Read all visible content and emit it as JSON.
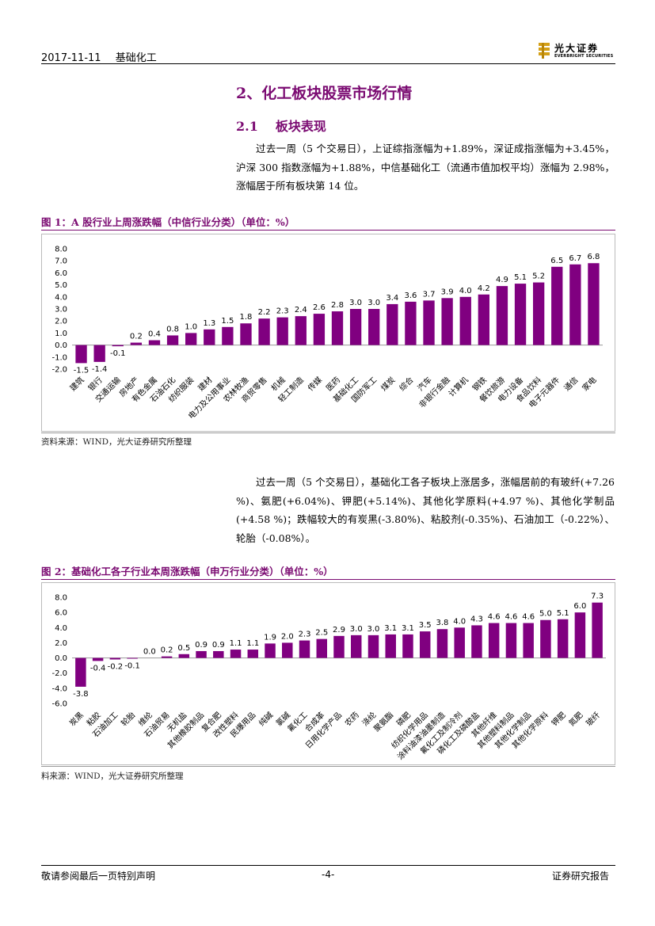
{
  "header": {
    "date": "2017-11-11",
    "topic": "基础化工",
    "brand_cn": "光大证券",
    "brand_en": "EVERBRIGHT SECURITIES"
  },
  "section": {
    "h2": "2、化工板块股票市场行情",
    "h3_num": "2.1",
    "h3_title": "板块表现"
  },
  "para1": "过去一周（5 个交易日），上证综指涨幅为+1.89%，深证成指涨幅为+3.45%，沪深 300 指数涨幅为+1.88%，中信基础化工（流通市值加权平均）涨幅为 2.98%，涨幅居于所有板块第 14 位。",
  "para2": "过去一周（5 个交易日），基础化工各子板块上涨居多，涨幅居前的有玻纤(+7.26 %)、氨肥(+6.04%)、钾肥(+5.14%)、其他化学原料(+4.97 %)、其他化学制品(+4.58 %)；跌幅较大的有炭黑(-3.80%)、粘胶剂(-0.35%)、石油加工（-0.22%）、轮胎（-0.08%）。",
  "fig1": {
    "title": "图 1：A 股行业上周涨跌幅（中信行业分类）（单位：%）",
    "source": "资料来源：WIND，光大证券研究所整理"
  },
  "fig2": {
    "title": "图 2：基础化工各子行业本周涨跌幅（申万行业分类）（单位：%）",
    "source": "料来源：WIND，光大证券研究所整理"
  },
  "footer": {
    "left": "敬请参阅最后一页特别声明",
    "center": "-4-",
    "right": "证券研究报告"
  },
  "colors": {
    "accent": "#7b0b72",
    "bar": "#800080"
  },
  "chart_data": [
    {
      "type": "bar",
      "title": "A 股行业上周涨跌幅（中信行业分类）（单位：%）",
      "categories": [
        "建筑",
        "银行",
        "交通运输",
        "房地产",
        "有色金属",
        "石油石化",
        "纺织服装",
        "建材",
        "电力及公用事业",
        "农林牧渔",
        "商贸零售",
        "机械",
        "轻工制造",
        "传媒",
        "医药",
        "基础化工",
        "国防军工",
        "煤炭",
        "综合",
        "汽车",
        "非银行金融",
        "计算机",
        "钢铁",
        "餐饮旅游",
        "电力设备",
        "食品饮料",
        "电子元器件",
        "通信",
        "家电"
      ],
      "values": [
        -1.5,
        -1.4,
        -0.1,
        0.2,
        0.4,
        0.8,
        1.0,
        1.3,
        1.5,
        1.8,
        2.2,
        2.3,
        2.4,
        2.6,
        2.8,
        3.0,
        3.0,
        3.4,
        3.6,
        3.7,
        3.9,
        4.0,
        4.2,
        4.9,
        5.1,
        5.2,
        6.5,
        6.7,
        6.8
      ],
      "labels": [
        "-1.5",
        "-1.4",
        "-0.1",
        "0.2",
        "0.4",
        "0.8",
        "1.0",
        "1.3",
        "1.5",
        "1.8",
        "2.2",
        "2.3",
        "2.4",
        "2.6",
        "2.8",
        "3.0",
        "3.0",
        "3.4",
        "3.6",
        "3.7",
        "3.9",
        "4.0",
        "4.2",
        "4.9",
        "5.1",
        "5.2",
        "6.5",
        "6.7",
        "6.8"
      ],
      "ylim": [
        -2,
        8
      ],
      "yticks": [
        -2,
        -1,
        0,
        1,
        2,
        3,
        4,
        5,
        6,
        7,
        8
      ],
      "ytick_labels": [
        "-2.0",
        "-1.0",
        "0.0",
        "1.0",
        "2.0",
        "3.0",
        "4.0",
        "5.0",
        "6.0",
        "7.0",
        "8.0"
      ],
      "xlabel": "",
      "ylabel": ""
    },
    {
      "type": "bar",
      "title": "基础化工各子行业本周涨跌幅（申万行业分类）（单位：%）",
      "categories": [
        "炭黑",
        "粘胶",
        "石油加工",
        "轮胎",
        "维纶",
        "石油贸易",
        "无机盐",
        "其他橡胶制品",
        "复合肥",
        "改性塑料",
        "民爆用品",
        "纯碱",
        "氯碱",
        "氟化工",
        "合成革",
        "日用化学产品",
        "农药",
        "涤纶",
        "聚氨酯",
        "磷肥",
        "纺织化学用品",
        "涂料油漆油墨制造",
        "氟化工及制冷剂",
        "磷化工及磷酸盐",
        "其他纤维",
        "其他塑料制品",
        "其他化学制品",
        "其他化学原料",
        "钾肥",
        "氮肥",
        "玻纤"
      ],
      "values": [
        -3.8,
        -0.4,
        -0.2,
        -0.1,
        0.0,
        0.2,
        0.5,
        0.9,
        0.9,
        1.1,
        1.1,
        1.9,
        2.0,
        2.3,
        2.5,
        2.9,
        3.0,
        3.0,
        3.1,
        3.1,
        3.5,
        3.8,
        4.0,
        4.3,
        4.6,
        4.6,
        4.6,
        5.0,
        5.1,
        6.0,
        7.3
      ],
      "labels": [
        "-3.8",
        "-0.4",
        "-0.2",
        "-0.1",
        "0.0",
        "0.2",
        "0.5",
        "0.9",
        "0.9",
        "1.1",
        "1.1",
        "1.9",
        "2.0",
        "2.3",
        "2.5",
        "2.9",
        "3.0",
        "3.0",
        "3.1",
        "3.1",
        "3.5",
        "3.8",
        "4.0",
        "4.3",
        "4.6",
        "4.6",
        "4.6",
        "5.0",
        "5.1",
        "6.0",
        "7.3"
      ],
      "ylim": [
        -6,
        8
      ],
      "yticks": [
        -6,
        -4,
        -2,
        0,
        2,
        4,
        6,
        8
      ],
      "ytick_labels": [
        "-6.0",
        "-4.0",
        "-2.0",
        "0.0",
        "2.0",
        "4.0",
        "6.0",
        "8.0"
      ],
      "xlabel": "",
      "ylabel": ""
    }
  ]
}
